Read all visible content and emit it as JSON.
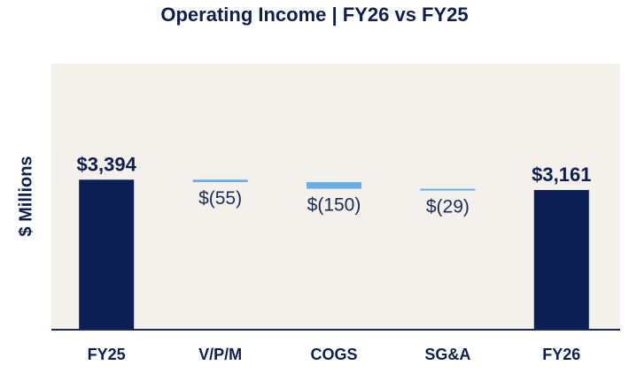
{
  "chart_data": {
    "type": "bar",
    "subtype": "waterfall",
    "title": "Operating Income | FY26 vs FY25",
    "xlabel": "",
    "ylabel": "$ Millions",
    "categories": [
      "FY25",
      "V/P/M",
      "COGS",
      "SG&A",
      "FY26"
    ],
    "values": [
      3394,
      -55,
      -150,
      -29,
      3161
    ],
    "kinds": [
      "total",
      "delta",
      "delta",
      "delta",
      "total"
    ],
    "data_labels": [
      "$3,394",
      "$(55)",
      "$(150)",
      "$(29)",
      "$3,161"
    ],
    "ylim": [
      0,
      4560
    ],
    "grid": false,
    "legend": "none"
  },
  "colors": {
    "total": "#0b1f55",
    "delta": "#6aaee8",
    "plot_background": "#f4f1ec",
    "axis": "#1b2a57",
    "text": "#0f1f4d"
  }
}
